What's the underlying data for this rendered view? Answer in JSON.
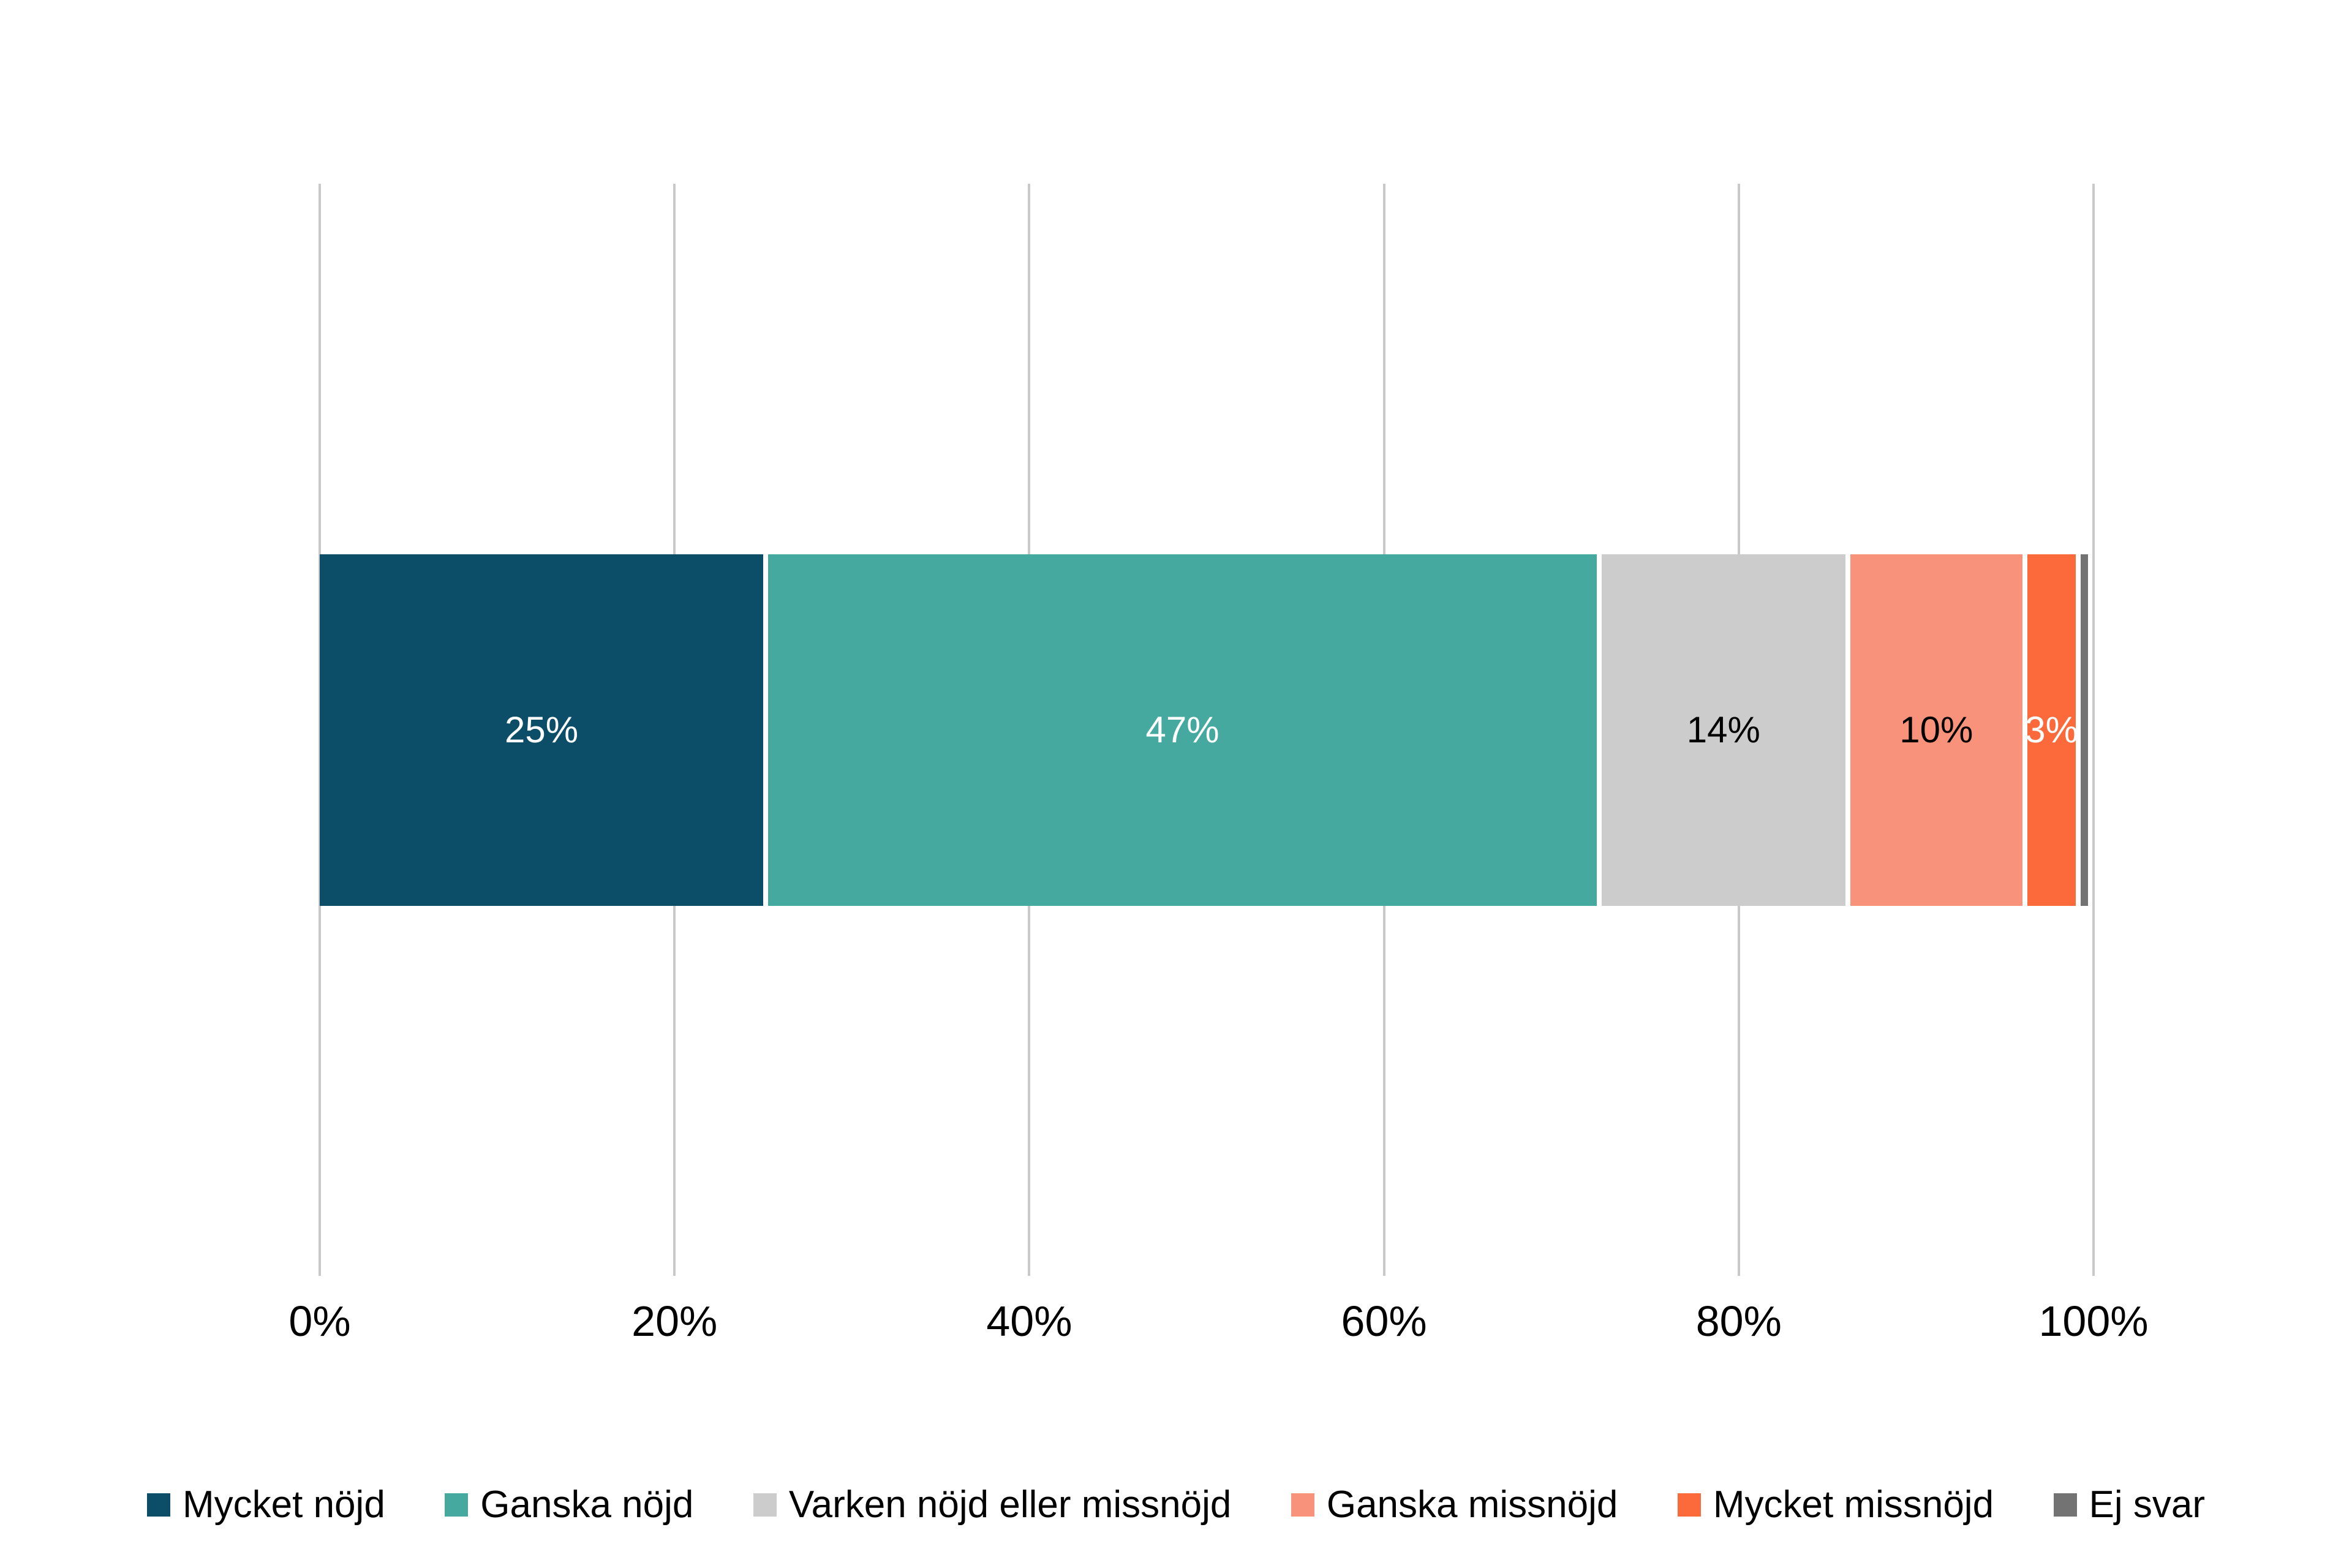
{
  "chart_data": {
    "type": "bar",
    "subtype": "stacked-100",
    "orientation": "horizontal",
    "title": "",
    "xlabel": "",
    "ylabel": "",
    "xlim": [
      0,
      100
    ],
    "grid": true,
    "gridline_color": "#c9c9c9",
    "legend_position": "bottom",
    "x_ticks": [
      "0%",
      "20%",
      "40%",
      "60%",
      "80%",
      "100%"
    ],
    "series": [
      {
        "name": "Mycket nöjd",
        "value": 25,
        "label": "25%",
        "color": "#0c4d68",
        "label_color": "#ffffff"
      },
      {
        "name": "Ganska nöjd",
        "value": 47,
        "label": "47%",
        "color": "#45a9a0",
        "label_color": "#ffffff"
      },
      {
        "name": "Varken nöjd eller missnöjd",
        "value": 14,
        "label": "14%",
        "color": "#cccccc",
        "label_color": "#000000"
      },
      {
        "name": "Ganska missnöjd",
        "value": 10,
        "label": "10%",
        "color": "#f8927a",
        "label_color": "#000000"
      },
      {
        "name": "Mycket missnöjd",
        "value": 3,
        "label": "3%",
        "color": "#fc6a3c",
        "label_color": "#ffffff"
      },
      {
        "name": "Ej svar",
        "value": 0.7,
        "label": "",
        "color": "#737373",
        "label_color": "#000000"
      }
    ]
  }
}
